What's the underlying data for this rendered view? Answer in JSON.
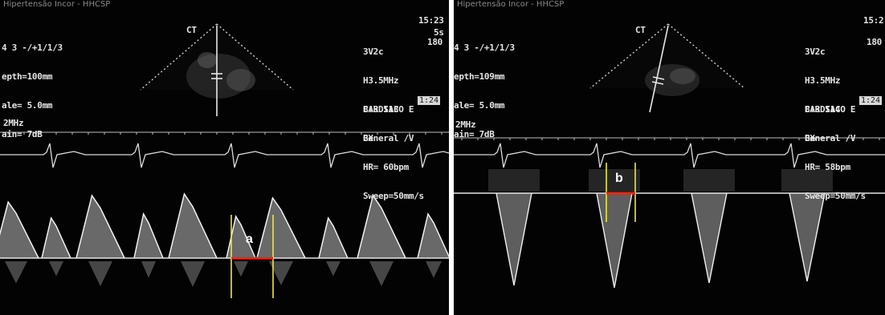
{
  "panels": [
    {
      "id": "a",
      "topbar": "Hipertensão Incor - HHCSP",
      "header_left": [
        "4 3 -/+1/1/3",
        "epth=100mm",
        "ale= 5.0mm",
        "ain= 7dB"
      ],
      "header_right_top": [
        "15:23",
        "5s"
      ],
      "probe_info": [
        "3V2c",
        "H3.5MHz",
        "CARDIACO E",
        "General /V"
      ],
      "probe_depth": "180",
      "settings": [
        "B:3 S13",
        "BX",
        "HR= 60bpm",
        "Sweep=50mm/s"
      ],
      "chip": "1:24",
      "scale_label": "2MHz",
      "view_label": "CT",
      "measure_label": "a",
      "heart_rate_bpm": 60
    },
    {
      "id": "b",
      "topbar": "Hipertensão Incor - HHCSP",
      "header_left": [
        "4 3 -/+1/1/3",
        "epth=109mm",
        "ale= 5.0mm",
        "ain= 7dB"
      ],
      "header_right_top": [
        "15:2",
        ""
      ],
      "probe_info": [
        "3V2c",
        "H3.5MHz",
        "CARDIACO E",
        "General /V"
      ],
      "probe_depth": "180",
      "settings": [
        "B:3 S14",
        "BX",
        "HR= 58bpm",
        "Sweep=50mm/s"
      ],
      "chip": "1:24",
      "scale_label": "2MHz",
      "view_label": "CT",
      "measure_label": "b",
      "heart_rate_bpm": 58
    }
  ],
  "colors": {
    "measurement_line": "#e82a1a",
    "caliper": "#f0e83a",
    "baseline": "#e6e6e6",
    "ecg": "#dcdcdc"
  }
}
